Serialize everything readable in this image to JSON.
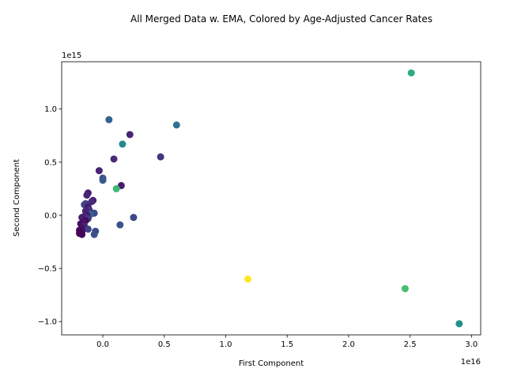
{
  "chart_data": {
    "type": "scatter",
    "title": "All Merged Data w. EMA, Colored by Age-Adjusted Cancer Rates",
    "xlabel": "First Component",
    "ylabel": "Second Component",
    "x_offset_label": "1e16",
    "y_offset_label": "1e15",
    "xlim": [
      -0.335,
      3.075
    ],
    "ylim": [
      -1.125,
      1.445
    ],
    "x_ticks": [
      0.0,
      0.5,
      1.0,
      1.5,
      2.0,
      2.5,
      3.0
    ],
    "x_tick_labels": [
      "0.0",
      "0.5",
      "1.0",
      "1.5",
      "2.0",
      "2.5",
      "3.0"
    ],
    "y_ticks": [
      -1.0,
      -0.5,
      0.0,
      0.5,
      1.0
    ],
    "y_tick_labels": [
      "−1.0",
      "−0.5",
      "0.0",
      "0.5",
      "1.0"
    ],
    "grid": false,
    "legend": "none",
    "colormap": [
      "#440154",
      "#482878",
      "#3e4989",
      "#31688e",
      "#26828e",
      "#1f9e89",
      "#35b779",
      "#6ece58",
      "#b5de2b",
      "#fde725"
    ],
    "points": [
      {
        "x": 2.51,
        "y": 1.34,
        "c": 0.62
      },
      {
        "x": 0.6,
        "y": 0.85,
        "c": 0.38
      },
      {
        "x": 0.05,
        "y": 0.9,
        "c": 0.32
      },
      {
        "x": 0.22,
        "y": 0.76,
        "c": 0.1
      },
      {
        "x": 0.16,
        "y": 0.67,
        "c": 0.48
      },
      {
        "x": 0.47,
        "y": 0.55,
        "c": 0.15
      },
      {
        "x": 0.09,
        "y": 0.53,
        "c": 0.12
      },
      {
        "x": -0.03,
        "y": 0.42,
        "c": 0.1
      },
      {
        "x": 0.0,
        "y": 0.35,
        "c": 0.25
      },
      {
        "x": 0.0,
        "y": 0.33,
        "c": 0.28
      },
      {
        "x": 0.15,
        "y": 0.28,
        "c": 0.08
      },
      {
        "x": 0.11,
        "y": 0.25,
        "c": 0.68
      },
      {
        "x": -0.12,
        "y": 0.21,
        "c": 0.08
      },
      {
        "x": -0.13,
        "y": 0.19,
        "c": 0.1
      },
      {
        "x": -0.08,
        "y": 0.14,
        "c": 0.08
      },
      {
        "x": -0.09,
        "y": 0.13,
        "c": 0.12
      },
      {
        "x": -0.14,
        "y": 0.11,
        "c": 0.18
      },
      {
        "x": -0.15,
        "y": 0.1,
        "c": 0.2
      },
      {
        "x": -0.12,
        "y": 0.08,
        "c": 0.08
      },
      {
        "x": -0.11,
        "y": 0.05,
        "c": 0.15
      },
      {
        "x": -0.14,
        "y": 0.04,
        "c": 0.1
      },
      {
        "x": -0.07,
        "y": 0.02,
        "c": 0.22
      },
      {
        "x": -0.1,
        "y": 0.01,
        "c": 0.3
      },
      {
        "x": -0.13,
        "y": 0.0,
        "c": 0.05
      },
      {
        "x": -0.15,
        "y": -0.01,
        "c": 0.12
      },
      {
        "x": -0.17,
        "y": -0.02,
        "c": 0.08
      },
      {
        "x": -0.12,
        "y": -0.03,
        "c": 0.18
      },
      {
        "x": -0.14,
        "y": -0.05,
        "c": 0.02
      },
      {
        "x": -0.16,
        "y": -0.06,
        "c": 0.05
      },
      {
        "x": -0.18,
        "y": -0.08,
        "c": 0.04
      },
      {
        "x": -0.15,
        "y": -0.1,
        "c": 0.1
      },
      {
        "x": -0.17,
        "y": -0.12,
        "c": 0.05
      },
      {
        "x": -0.12,
        "y": -0.13,
        "c": 0.2
      },
      {
        "x": -0.19,
        "y": -0.14,
        "c": 0.02
      },
      {
        "x": -0.17,
        "y": -0.15,
        "c": 0.04
      },
      {
        "x": -0.06,
        "y": -0.15,
        "c": 0.22
      },
      {
        "x": -0.18,
        "y": -0.16,
        "c": 0.03
      },
      {
        "x": -0.19,
        "y": -0.17,
        "c": 0.02
      },
      {
        "x": -0.17,
        "y": -0.18,
        "c": 0.04
      },
      {
        "x": -0.07,
        "y": -0.18,
        "c": 0.25
      },
      {
        "x": -0.18,
        "y": -0.17,
        "c": 0.01
      },
      {
        "x": 0.25,
        "y": -0.02,
        "c": 0.22
      },
      {
        "x": 0.14,
        "y": -0.09,
        "c": 0.26
      },
      {
        "x": 1.18,
        "y": -0.6,
        "c": 1.0
      },
      {
        "x": 2.46,
        "y": -0.69,
        "c": 0.7
      },
      {
        "x": 2.9,
        "y": -1.02,
        "c": 0.5
      }
    ]
  }
}
